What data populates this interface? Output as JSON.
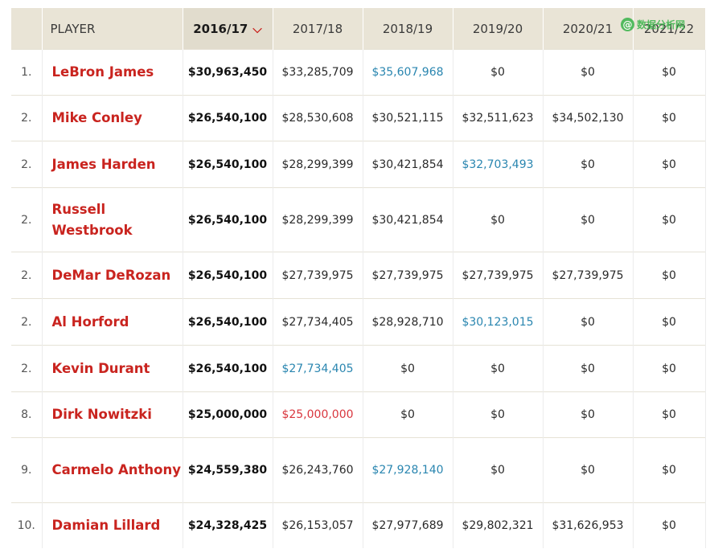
{
  "header": {
    "rank": "",
    "player": "PLAYER",
    "seasons": [
      "2016/17",
      "2017/18",
      "2018/19",
      "2019/20",
      "2020/21",
      "2021/22"
    ],
    "sort_indicator": "❯"
  },
  "watermark": {
    "icon": "@",
    "text": "数据分析网"
  },
  "rows": [
    {
      "rank": "1.",
      "player": "LeBron James",
      "salaries": [
        "$30,963,450",
        "$33,285,709",
        "$35,607,968",
        "$0",
        "$0",
        "$0"
      ]
    },
    {
      "rank": "2.",
      "player": "Mike Conley",
      "salaries": [
        "$26,540,100",
        "$28,530,608",
        "$30,521,115",
        "$32,511,623",
        "$34,502,130",
        "$0"
      ]
    },
    {
      "rank": "2.",
      "player": "James Harden",
      "salaries": [
        "$26,540,100",
        "$28,299,399",
        "$30,421,854",
        "$32,703,493",
        "$0",
        "$0"
      ]
    },
    {
      "rank": "2.",
      "player": "Russell Westbrook",
      "salaries": [
        "$26,540,100",
        "$28,299,399",
        "$30,421,854",
        "$0",
        "$0",
        "$0"
      ]
    },
    {
      "rank": "2.",
      "player": "DeMar DeRozan",
      "salaries": [
        "$26,540,100",
        "$27,739,975",
        "$27,739,975",
        "$27,739,975",
        "$27,739,975",
        "$0"
      ]
    },
    {
      "rank": "2.",
      "player": "Al Horford",
      "salaries": [
        "$26,540,100",
        "$27,734,405",
        "$28,928,710",
        "$30,123,015",
        "$0",
        "$0"
      ]
    },
    {
      "rank": "2.",
      "player": "Kevin Durant",
      "salaries": [
        "$26,540,100",
        "$27,734,405",
        "$0",
        "$0",
        "$0",
        "$0"
      ]
    },
    {
      "rank": "8.",
      "player": "Dirk Nowitzki",
      "salaries": [
        "$25,000,000",
        "$25,000,000",
        "$0",
        "$0",
        "$0",
        "$0"
      ]
    },
    {
      "rank": "9.",
      "player": "Carmelo Anthony",
      "salaries": [
        "$24,559,380",
        "$26,243,760",
        "$27,928,140",
        "$0",
        "$0",
        "$0"
      ]
    },
    {
      "rank": "10.",
      "player": "Damian Lillard",
      "salaries": [
        "$24,328,425",
        "$26,153,057",
        "$27,977,689",
        "$29,802,321",
        "$31,626,953",
        "$0"
      ]
    }
  ],
  "colors": {
    "player_name": "#c9241f",
    "option_blue": "#2a86b0",
    "option_red": "#d9363e",
    "header_bg": "#e9e4d6"
  }
}
